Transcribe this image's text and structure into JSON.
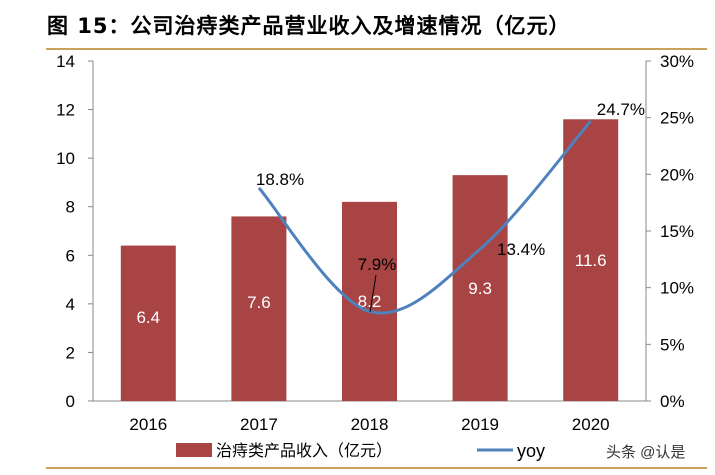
{
  "title": "图 15：公司治痔类产品营业收入及增速情况（亿元）",
  "watermark": "头条 @认是",
  "chart_data": {
    "type": "bar+line",
    "categories": [
      "2016",
      "2017",
      "2018",
      "2019",
      "2020"
    ],
    "series": [
      {
        "name": "治痔类产品收入（亿元）",
        "type": "bar",
        "axis": "left",
        "color": "#A84444",
        "values": [
          6.4,
          7.6,
          8.2,
          9.3,
          11.6
        ],
        "labels": [
          "6.4",
          "7.6",
          "8.2",
          "9.3",
          "11.6"
        ]
      },
      {
        "name": "yoy",
        "type": "line",
        "axis": "right",
        "color": "#4F81BD",
        "values": [
          null,
          18.8,
          7.9,
          13.4,
          24.7
        ],
        "labels": [
          "",
          "18.8%",
          "7.9%",
          "13.4%",
          "24.7%"
        ]
      }
    ],
    "left_axis": {
      "ylim": [
        0,
        14
      ],
      "ticks": [
        "0",
        "2",
        "4",
        "6",
        "8",
        "10",
        "12",
        "14"
      ]
    },
    "right_axis": {
      "ylim": [
        0,
        30
      ],
      "ticks": [
        "0%",
        "5%",
        "10%",
        "15%",
        "20%",
        "25%",
        "30%"
      ]
    },
    "legend": "bottom",
    "grid": false
  }
}
